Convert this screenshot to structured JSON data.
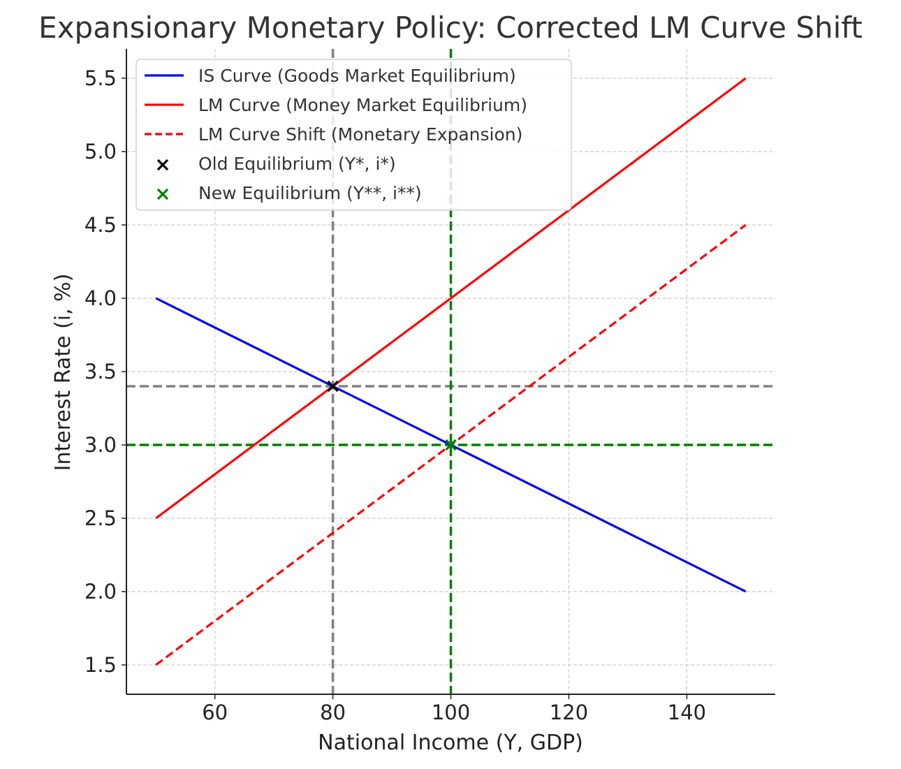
{
  "chart_data": {
    "type": "line",
    "title": "Expansionary Monetary Policy: Corrected LM Curve Shift",
    "xlabel": "National Income (Y, GDP)",
    "ylabel": "Interest Rate (i, %)",
    "xlim": [
      45,
      155
    ],
    "ylim": [
      1.3,
      5.7
    ],
    "grid": true,
    "legend_position": "top-left",
    "xticks": [
      60,
      80,
      100,
      120,
      140
    ],
    "yticks": [
      1.5,
      2.0,
      2.5,
      3.0,
      3.5,
      4.0,
      4.5,
      5.0,
      5.5
    ],
    "series": [
      {
        "name": "IS Curve (Goods Market Equilibrium)",
        "color": "#0000ff",
        "style": "solid",
        "x": [
          50,
          150
        ],
        "y": [
          4.0,
          2.0
        ]
      },
      {
        "name": "LM Curve (Money Market Equilibrium)",
        "color": "#ff0000",
        "style": "solid",
        "x": [
          50,
          150
        ],
        "y": [
          2.5,
          5.5
        ]
      },
      {
        "name": "LM Curve Shift (Monetary Expansion)",
        "color": "#ff0000",
        "style": "dashed",
        "x": [
          50,
          150
        ],
        "y": [
          1.5,
          4.5
        ]
      }
    ],
    "points": [
      {
        "name": "Old Equilibrium (Y*, i*)",
        "color": "#000000",
        "x": 80,
        "y": 3.4
      },
      {
        "name": "New Equilibrium (Y**, i**)",
        "color": "#008000",
        "x": 100,
        "y": 3.0
      }
    ],
    "reference_lines": [
      {
        "orientation": "vertical",
        "value": 80,
        "color": "#808080"
      },
      {
        "orientation": "horizontal",
        "value": 3.4,
        "color": "#808080"
      },
      {
        "orientation": "vertical",
        "value": 100,
        "color": "#008000"
      },
      {
        "orientation": "horizontal",
        "value": 3.0,
        "color": "#008000"
      }
    ]
  }
}
